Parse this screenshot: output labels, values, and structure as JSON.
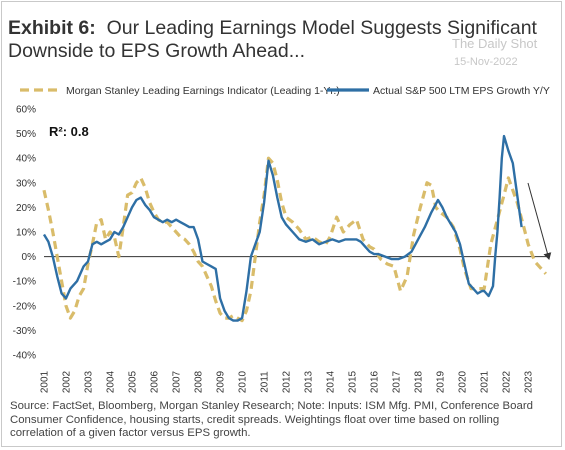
{
  "title": {
    "exhibit": "Exhibit 6:",
    "text": "Our Leading Earnings Model Suggests Significant Downside to EPS Growth Ahead..."
  },
  "watermark": {
    "line1": "The Daily Shot",
    "line2": "15-Nov-2022"
  },
  "source": "Source: FactSet, Bloomberg, Morgan Stanley Research; Note: Inputs: ISM Mfg. PMI, Conference Board Consumer Confidence, housing starts, credit spreads. Weightings float over time based on rolling correlation of a given factor versus EPS growth.",
  "chart_data": {
    "type": "line",
    "annotation": "R²: 0.8",
    "ylim": [
      -40,
      60
    ],
    "yticks": [
      -40,
      -30,
      -20,
      -10,
      0,
      10,
      20,
      30,
      40,
      50,
      60
    ],
    "ytick_labels": [
      "-40%",
      "-30%",
      "-20%",
      "-10%",
      "0%",
      "10%",
      "20%",
      "30%",
      "40%",
      "50%",
      "60%"
    ],
    "xlim": [
      2001,
      2023.9
    ],
    "xticks": [
      "2001",
      "2002",
      "2003",
      "2004",
      "2005",
      "2006",
      "2007",
      "2008",
      "2009",
      "2010",
      "2011",
      "2012",
      "2013",
      "2014",
      "2015",
      "2016",
      "2017",
      "2018",
      "2019",
      "2020",
      "2021",
      "2022",
      "2023"
    ],
    "legend_position": "top",
    "grid": false,
    "colors": {
      "leading": "#D9BC6A",
      "actual": "#2E6FA5",
      "arrow": "#333333",
      "zero_line": "#333333"
    },
    "series": [
      {
        "name": "Morgan Stanley Leading Earnings Indicator (Leading 1-Yr.)",
        "style": "dashed",
        "x": [
          2001.0,
          2001.2,
          2001.4,
          2001.6,
          2001.8,
          2002.0,
          2002.2,
          2002.4,
          2002.6,
          2002.8,
          2003.0,
          2003.2,
          2003.4,
          2003.6,
          2003.8,
          2004.0,
          2004.2,
          2004.4,
          2004.6,
          2004.8,
          2005.0,
          2005.2,
          2005.4,
          2005.6,
          2005.8,
          2006.0,
          2006.2,
          2006.4,
          2006.6,
          2006.8,
          2007.0,
          2007.2,
          2007.4,
          2007.6,
          2007.8,
          2008.0,
          2008.2,
          2008.4,
          2008.6,
          2008.8,
          2009.0,
          2009.2,
          2009.4,
          2009.6,
          2009.8,
          2010.0,
          2010.2,
          2010.4,
          2010.6,
          2010.8,
          2011.0,
          2011.2,
          2011.4,
          2011.6,
          2011.8,
          2012.0,
          2012.3,
          2012.6,
          2012.9,
          2013.2,
          2013.5,
          2013.8,
          2014.0,
          2014.3,
          2014.6,
          2014.9,
          2015.2,
          2015.5,
          2015.8,
          2016.0,
          2016.3,
          2016.6,
          2016.9,
          2017.2,
          2017.5,
          2017.8,
          2018.1,
          2018.4,
          2018.6,
          2018.8,
          2019.0,
          2019.3,
          2019.6,
          2019.9,
          2020.1,
          2020.4,
          2020.7,
          2021.0,
          2021.3,
          2021.6,
          2021.9,
          2022.1,
          2022.3,
          2022.5,
          2022.8,
          2023.0,
          2023.3,
          2023.6,
          2023.8
        ],
        "values": [
          27,
          19,
          10,
          0,
          -10,
          -20,
          -25,
          -22,
          -16,
          -13,
          -3,
          5,
          14,
          15,
          7,
          10,
          8,
          0,
          12,
          25,
          26,
          30,
          32,
          28,
          22,
          18,
          15,
          14,
          14,
          12,
          10,
          8,
          7,
          5,
          2,
          -2,
          -4,
          -8,
          -12,
          -18,
          -23,
          -25,
          -25,
          -24,
          -25,
          -26,
          -22,
          -14,
          0,
          14,
          25,
          40,
          38,
          31,
          22,
          16,
          14,
          11,
          7,
          8,
          6,
          5,
          8,
          16,
          10,
          13,
          15,
          7,
          4,
          3,
          -1,
          -3,
          -4,
          -14,
          -8,
          9,
          20,
          30,
          29,
          20,
          18,
          16,
          12,
          3,
          -5,
          -13,
          -13,
          -13,
          5,
          15,
          25,
          32,
          27,
          22,
          12,
          5,
          -2,
          -5,
          -7
        ]
      },
      {
        "name": "Actual S&P 500 LTM EPS Growth Y/Y",
        "style": "solid",
        "x": [
          2001.0,
          2001.2,
          2001.4,
          2001.6,
          2001.8,
          2002.0,
          2002.2,
          2002.5,
          2002.8,
          2003.0,
          2003.2,
          2003.4,
          2003.6,
          2003.8,
          2004.0,
          2004.2,
          2004.4,
          2004.6,
          2004.8,
          2005.0,
          2005.2,
          2005.4,
          2005.6,
          2005.8,
          2006.0,
          2006.2,
          2006.4,
          2006.6,
          2006.8,
          2007.0,
          2007.2,
          2007.4,
          2007.6,
          2007.8,
          2008.0,
          2008.2,
          2008.4,
          2008.6,
          2008.8,
          2009.0,
          2009.2,
          2009.4,
          2009.6,
          2009.8,
          2010.0,
          2010.2,
          2010.4,
          2010.6,
          2010.8,
          2011.0,
          2011.2,
          2011.4,
          2011.6,
          2011.8,
          2012.0,
          2012.3,
          2012.6,
          2012.9,
          2013.2,
          2013.5,
          2013.8,
          2014.1,
          2014.4,
          2014.7,
          2015.0,
          2015.2,
          2015.4,
          2015.6,
          2015.8,
          2016.0,
          2016.2,
          2016.5,
          2016.8,
          2017.1,
          2017.4,
          2017.7,
          2018.0,
          2018.3,
          2018.6,
          2018.9,
          2019.1,
          2019.3,
          2019.5,
          2019.7,
          2019.9,
          2020.1,
          2020.3,
          2020.5,
          2020.7,
          2020.9,
          2021.0,
          2021.2,
          2021.4,
          2021.5,
          2021.6,
          2021.7,
          2021.8,
          2021.9,
          2022.0,
          2022.1,
          2022.3,
          2022.5,
          2022.7
        ],
        "values": [
          9,
          6,
          0,
          -8,
          -15,
          -17,
          -13,
          -10,
          -4,
          -2,
          5,
          6,
          5,
          6,
          7,
          10,
          9,
          12,
          16,
          20,
          23,
          24,
          21,
          19,
          16,
          15,
          14,
          15,
          14,
          15,
          14,
          13,
          12,
          12,
          7,
          -2,
          -3,
          -4,
          -5,
          -17,
          -22,
          -25,
          -26,
          -26,
          -25,
          -14,
          0,
          5,
          10,
          22,
          39,
          33,
          24,
          16,
          13,
          10,
          7,
          6,
          7,
          5,
          6,
          7,
          6,
          7,
          7,
          7,
          6,
          4,
          2,
          1,
          1,
          0,
          -1,
          -1,
          0,
          2,
          7,
          12,
          18,
          23,
          20,
          16,
          13,
          10,
          5,
          -3,
          -11,
          -13,
          -15,
          -14,
          -14,
          -16,
          -12,
          0,
          10,
          24,
          40,
          49,
          46,
          43,
          38,
          25,
          12
        ]
      }
    ]
  }
}
